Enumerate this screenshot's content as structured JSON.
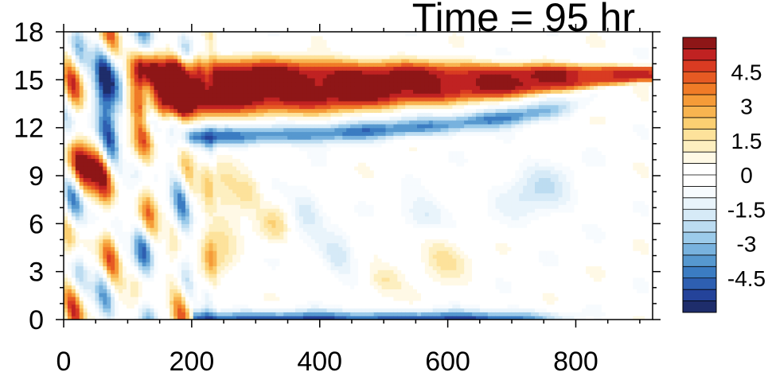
{
  "chart_data": {
    "type": "heatmap",
    "title": "Time = 95 hr",
    "xlabel": "",
    "ylabel": "",
    "xlim": [
      0,
      920
    ],
    "ylim": [
      0,
      18
    ],
    "x_ticks": [
      "0",
      "200",
      "400",
      "600",
      "800"
    ],
    "x_tick_values": [
      0,
      200,
      400,
      600,
      800
    ],
    "y_ticks": [
      "0",
      "3",
      "6",
      "9",
      "12",
      "15",
      "18"
    ],
    "y_tick_values": [
      0,
      3,
      6,
      9,
      12,
      15,
      18
    ],
    "grid": false,
    "colorbar": {
      "range": [
        -6,
        6
      ],
      "step": 0.5,
      "tick_labels": [
        "4.5",
        "3",
        "1.5",
        "0",
        "-1.5",
        "-3",
        "-4.5"
      ],
      "tick_values": [
        4.5,
        3,
        1.5,
        0,
        -1.5,
        -3,
        -4.5
      ],
      "colors": [
        "#1e2d6b",
        "#24439a",
        "#2e5fb1",
        "#3b7cc2",
        "#5698cf",
        "#78b2de",
        "#9ccbea",
        "#bcdcf1",
        "#d6eaf7",
        "#e9f4fb",
        "#f7fbfe",
        "#ffffff",
        "#ffffff",
        "#fff9e6",
        "#fdefc0",
        "#fde29b",
        "#fbcf72",
        "#f8b450",
        "#f59b38",
        "#f07b27",
        "#e65a23",
        "#d93b22",
        "#c02222",
        "#8e1617"
      ]
    },
    "features": [
      {
        "name": "upper-warm-layer",
        "x": [
          120,
          900
        ],
        "y": [
          12.5,
          16.5
        ],
        "peak_value": 6
      },
      {
        "name": "negative-band-below-warm-layer",
        "x": [
          200,
          700
        ],
        "y": [
          10.5,
          12
        ],
        "peak_value": -4
      },
      {
        "name": "surface-negative-layer",
        "x": [
          200,
          700
        ],
        "y": [
          0,
          0.8
        ],
        "peak_value": -5
      },
      {
        "name": "early-column-wave-train",
        "x": [
          0,
          220
        ],
        "y": [
          0,
          18
        ],
        "peak_value": 6
      },
      {
        "name": "weak-mid-level-positive-patches",
        "x": [
          300,
          650
        ],
        "y": [
          3,
          7
        ],
        "peak_value": 2
      }
    ]
  }
}
